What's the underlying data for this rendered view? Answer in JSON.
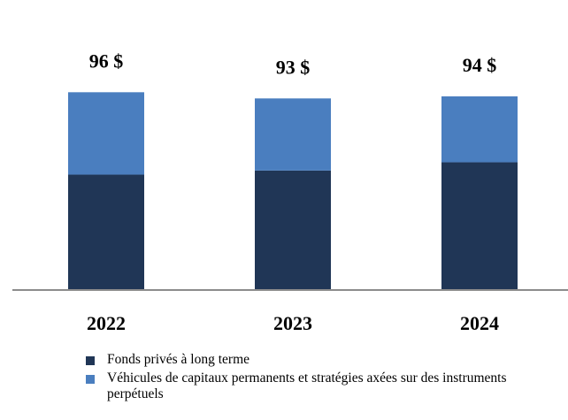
{
  "chart_data": {
    "type": "bar",
    "stacked": true,
    "categories": [
      "2022",
      "2023",
      "2024"
    ],
    "totals": [
      "96 $",
      "93 $",
      "94 $"
    ],
    "series": [
      {
        "name": "Fonds privés à long terme",
        "values": [
          56,
          58,
          62
        ],
        "color": "#203656"
      },
      {
        "name": "Véhicules de capitaux permanents et stratégies axées sur des instruments perpétuels",
        "values": [
          40,
          35,
          32
        ],
        "color": "#4a7ebf"
      }
    ],
    "ylim": [
      0,
      100
    ],
    "grid": false,
    "legend_position": "bottom-left",
    "axis_color": "#8c8c8c"
  }
}
